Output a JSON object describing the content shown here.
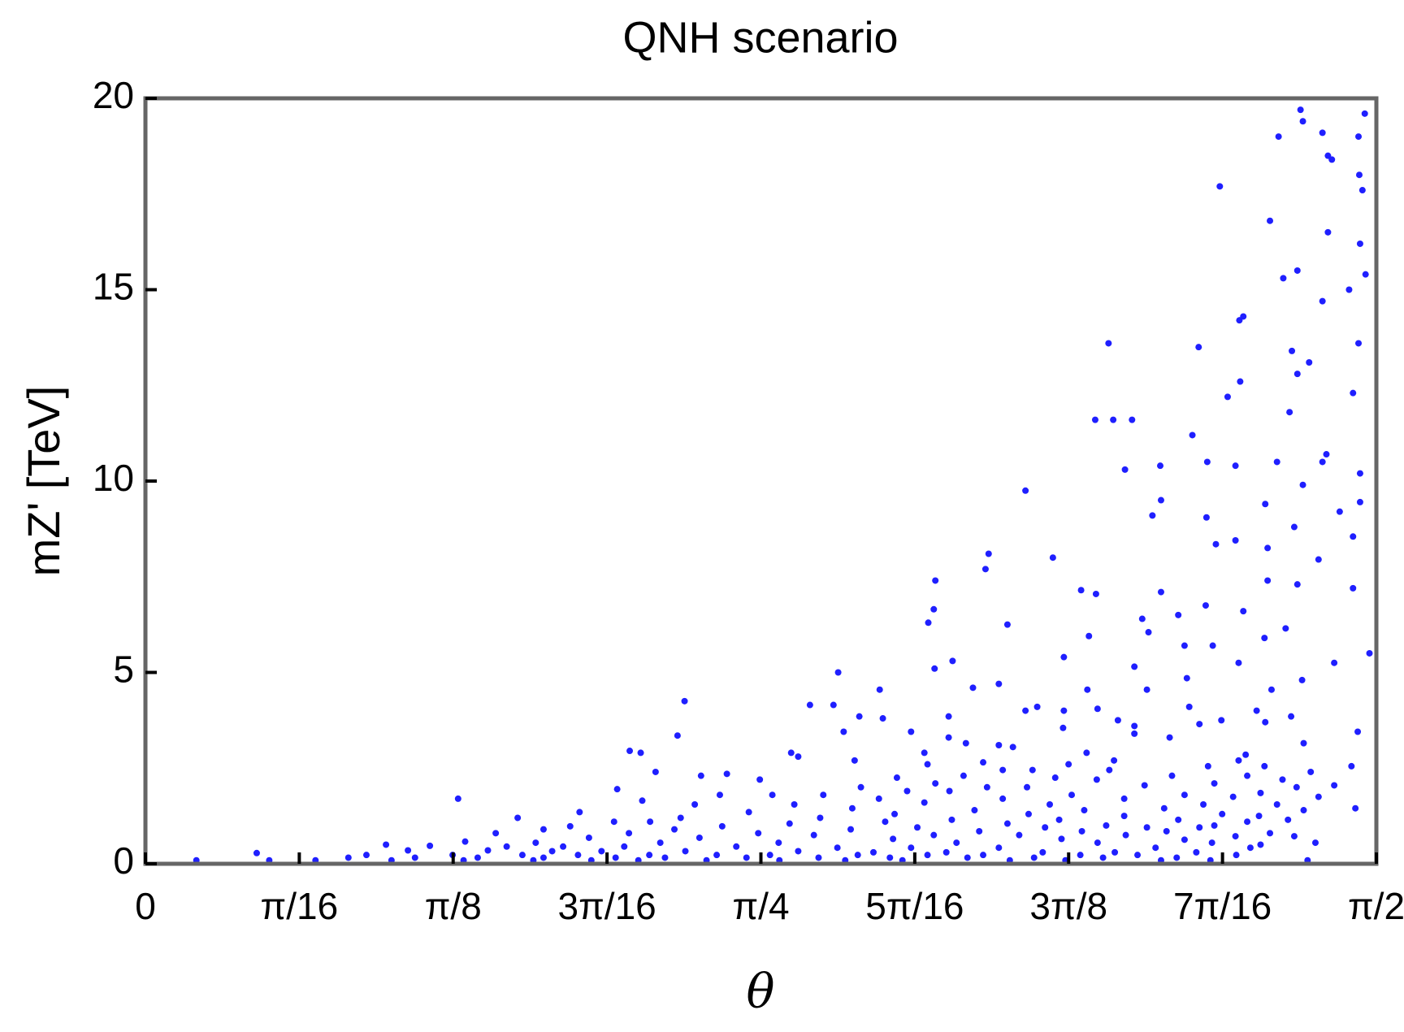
{
  "chart_data": {
    "type": "scatter",
    "title": "QNH scenario",
    "x_label": "θ",
    "y_label": "mZ' [TeV]",
    "xlim": [
      0,
      1.570796
    ],
    "ylim": [
      0,
      20
    ],
    "xticks": [
      0,
      {
        "value": 0.19635,
        "label": "π/16"
      },
      {
        "value": 0.392699,
        "label": "π/8"
      },
      {
        "value": 0.589049,
        "label": "3π/16"
      },
      {
        "value": 0.785398,
        "label": "π/4"
      },
      {
        "value": 0.981748,
        "label": "5π/16"
      },
      {
        "value": 1.178097,
        "label": "3π/8"
      },
      {
        "value": 1.374447,
        "label": "7π/16"
      },
      {
        "value": 1.570796,
        "label": "π/2"
      }
    ],
    "yticks": [
      0,
      5,
      10,
      15,
      20
    ],
    "color": "#1f1fff",
    "x": [
      1.474,
      1.477,
      1.446,
      1.502,
      1.556,
      1.548,
      1.509,
      1.514,
      1.549,
      1.553,
      1.371,
      1.435,
      1.509,
      1.55,
      1.47,
      1.452,
      1.557,
      1.502,
      1.536,
      1.401,
      1.396,
      1.548,
      1.229,
      1.344,
      1.463,
      1.485,
      1.47,
      1.541,
      1.397,
      1.381,
      1.212,
      1.235,
      1.259,
      1.336,
      1.25,
      1.46,
      1.507,
      1.444,
      1.502,
      1.355,
      1.295,
      1.391,
      1.123,
      1.477,
      1.55,
      1.296,
      1.55,
      1.285,
      1.354,
      1.524,
      1.429,
      1.466,
      1.076,
      1.158,
      1.391,
      1.432,
      1.366,
      1.072,
      1.497,
      1.541,
      1.008,
      1.194,
      1.213,
      1.296,
      1.432,
      1.47,
      1.541,
      1.006,
      1.401,
      1.353,
      1.318,
      0.999,
      1.1,
      1.272,
      1.28,
      1.204,
      1.428,
      1.455,
      1.362,
      1.326,
      1.562,
      1.172,
      1.03,
      1.262,
      1.517,
      1.007,
      0.884,
      1.395,
      1.476,
      1.056,
      1.089,
      1.329,
      0.937,
      1.437,
      1.278,
      0.688,
      0.848,
      0.878,
      1.202,
      1.138,
      1.172,
      1.215,
      1.123,
      1.418,
      1.025,
      1.332,
      0.911,
      0.941,
      1.241,
      1.345,
      1.373,
      1.429,
      1.462,
      1.262,
      0.977,
      1.171,
      0.891,
      0.679,
      1.025,
      1.262,
      1.307,
      1.547,
      1.047,
      1.089,
      1.107,
      1.478,
      0.618,
      0.632,
      0.824,
      0.994,
      1.201,
      1.404,
      0.833,
      1.236,
      1.069,
      1.395,
      0.998,
      1.178,
      0.905,
      1.428,
      1.356,
      1.094,
      1.132,
      1.23,
      1.044,
      0.651,
      1.487,
      1.539,
      1.406,
      1.31,
      0.742,
      0.709,
      0.959,
      1.161,
      1.214,
      0.784,
      1.451,
      1.008,
      1.364,
      1.275,
      0.913,
      0.602,
      1.074,
      1.125,
      1.469,
      1.517,
      0.972,
      1.026,
      0.733,
      0.8,
      1.182,
      1.326,
      1.423,
      0.865,
      0.399,
      0.936,
      1.094,
      1.249,
      1.388,
      1.497,
      0.634,
      0.701,
      0.828,
      0.994,
      1.154,
      1.35,
      1.444,
      0.902,
      1.058,
      1.198,
      1.3,
      1.478,
      1.544,
      0.554,
      0.77,
      0.956,
      1.127,
      1.249,
      1.374,
      1.421,
      0.475,
      0.683,
      0.861,
      1.029,
      1.166,
      1.318,
      1.406,
      1.458,
      0.598,
      0.644,
      0.822,
      0.944,
      1.1,
      1.226,
      1.364,
      0.542,
      0.736,
      0.985,
      1.148,
      1.278,
      1.345,
      0.508,
      0.675,
      0.9,
      1.064,
      1.195,
      1.303,
      1.435,
      0.447,
      0.617,
      0.782,
      0.853,
      1.006,
      1.115,
      1.251,
      1.391,
      1.466,
      0.566,
      0.707,
      0.954,
      1.169,
      1.326,
      1.493,
      0.408,
      0.498,
      0.657,
      0.808,
      1.035,
      1.215,
      1.361,
      1.423,
      0.307,
      0.363,
      0.461,
      0.533,
      0.611,
      0.754,
      0.883,
      0.977,
      1.089,
      1.289,
      1.41,
      0.335,
      0.437,
      0.519,
      0.582,
      0.689,
      0.833,
      0.929,
      1.022,
      1.145,
      1.237,
      1.341,
      0.142,
      0.282,
      0.392,
      0.481,
      0.552,
      0.643,
      0.729,
      0.797,
      0.909,
      0.998,
      1.069,
      1.193,
      1.266,
      1.392,
      0.259,
      0.344,
      0.424,
      0.508,
      0.6,
      0.663,
      0.767,
      0.859,
      0.95,
      1.049,
      1.134,
      1.222,
      1.316,
      0.065,
      0.158,
      0.217,
      0.314,
      0.406,
      0.495,
      0.569,
      0.629,
      0.716,
      0.809,
      0.893,
      0.966,
      1.103,
      1.174,
      1.296,
      1.359,
      1.483
    ],
    "values": [
      19.7,
      19.4,
      19.0,
      19.1,
      19.6,
      19.0,
      18.5,
      18.4,
      18.0,
      17.6,
      17.7,
      16.8,
      16.5,
      16.2,
      15.5,
      15.3,
      15.4,
      14.7,
      15.0,
      14.3,
      14.2,
      13.6,
      13.6,
      13.5,
      13.4,
      13.1,
      12.8,
      12.3,
      12.6,
      12.2,
      11.6,
      11.6,
      11.6,
      11.2,
      10.3,
      11.8,
      10.7,
      10.5,
      10.5,
      10.5,
      10.4,
      10.4,
      9.75,
      9.9,
      10.2,
      9.5,
      9.45,
      9.1,
      9.05,
      9.2,
      9.4,
      8.8,
      8.1,
      8.0,
      8.45,
      8.25,
      8.35,
      7.7,
      7.95,
      8.55,
      7.4,
      7.15,
      7.05,
      7.1,
      7.4,
      7.3,
      7.2,
      6.65,
      6.6,
      6.75,
      6.5,
      6.3,
      6.25,
      6.4,
      6.05,
      5.95,
      5.9,
      6.15,
      5.7,
      5.7,
      5.5,
      5.4,
      5.3,
      5.15,
      5.25,
      5.1,
      5.0,
      5.25,
      4.8,
      4.6,
      4.7,
      4.85,
      4.55,
      4.55,
      4.55,
      4.25,
      4.15,
      4.15,
      4.55,
      4.1,
      4.0,
      4.05,
      4.0,
      4.0,
      3.85,
      4.1,
      3.85,
      3.8,
      3.75,
      3.65,
      3.75,
      3.7,
      3.85,
      3.6,
      3.45,
      3.55,
      3.45,
      3.35,
      3.3,
      3.4,
      3.3,
      3.45,
      3.15,
      3.1,
      3.05,
      3.15,
      2.95,
      2.9,
      2.9,
      2.9,
      2.9,
      2.85,
      2.8,
      2.7,
      2.65,
      2.7,
      2.6,
      2.6,
      2.7,
      2.55,
      2.55,
      2.45,
      2.45,
      2.45,
      2.3,
      2.4,
      2.4,
      2.55,
      2.3,
      2.3,
      2.35,
      2.3,
      2.25,
      2.25,
      2.2,
      2.2,
      2.2,
      2.1,
      2.1,
      2.05,
      2.0,
      1.95,
      2.0,
      2.0,
      2.0,
      2.05,
      1.9,
      1.9,
      1.8,
      1.8,
      1.8,
      1.8,
      1.85,
      1.8,
      1.7,
      1.7,
      1.7,
      1.7,
      1.75,
      1.75,
      1.65,
      1.55,
      1.55,
      1.6,
      1.55,
      1.55,
      1.55,
      1.45,
      1.4,
      1.4,
      1.45,
      1.4,
      1.45,
      1.35,
      1.35,
      1.3,
      1.3,
      1.25,
      1.3,
      1.25,
      1.2,
      1.2,
      1.2,
      1.15,
      1.15,
      1.15,
      1.1,
      1.15,
      1.1,
      1.1,
      1.05,
      1.1,
      1.05,
      1.0,
      1.0,
      0.98,
      0.98,
      0.95,
      0.95,
      0.95,
      0.95,
      0.9,
      0.9,
      0.9,
      0.85,
      0.85,
      0.85,
      0.8,
      0.8,
      0.8,
      0.8,
      0.75,
      0.75,
      0.75,
      0.75,
      0.72,
      0.72,
      0.68,
      0.68,
      0.65,
      0.65,
      0.63,
      0.55,
      0.58,
      0.55,
      0.55,
      0.55,
      0.55,
      0.55,
      0.55,
      0.5,
      0.5,
      0.47,
      0.45,
      0.45,
      0.45,
      0.45,
      0.42,
      0.42,
      0.42,
      0.42,
      0.42,
      0.35,
      0.35,
      0.33,
      0.33,
      0.33,
      0.33,
      0.3,
      0.3,
      0.3,
      0.3,
      0.3,
      0.28,
      0.23,
      0.23,
      0.23,
      0.23,
      0.23,
      0.23,
      0.23,
      0.23,
      0.23,
      0.23,
      0.23,
      0.23,
      0.23,
      0.16,
      0.16,
      0.16,
      0.16,
      0.16,
      0.16,
      0.16,
      0.16,
      0.16,
      0.16,
      0.16,
      0.16,
      0.16,
      0.09,
      0.09,
      0.09,
      0.09,
      0.09,
      0.09,
      0.09,
      0.09,
      0.09,
      0.09,
      0.09,
      0.09,
      0.09,
      0.09,
      0.09,
      0.09,
      0.09
    ]
  }
}
